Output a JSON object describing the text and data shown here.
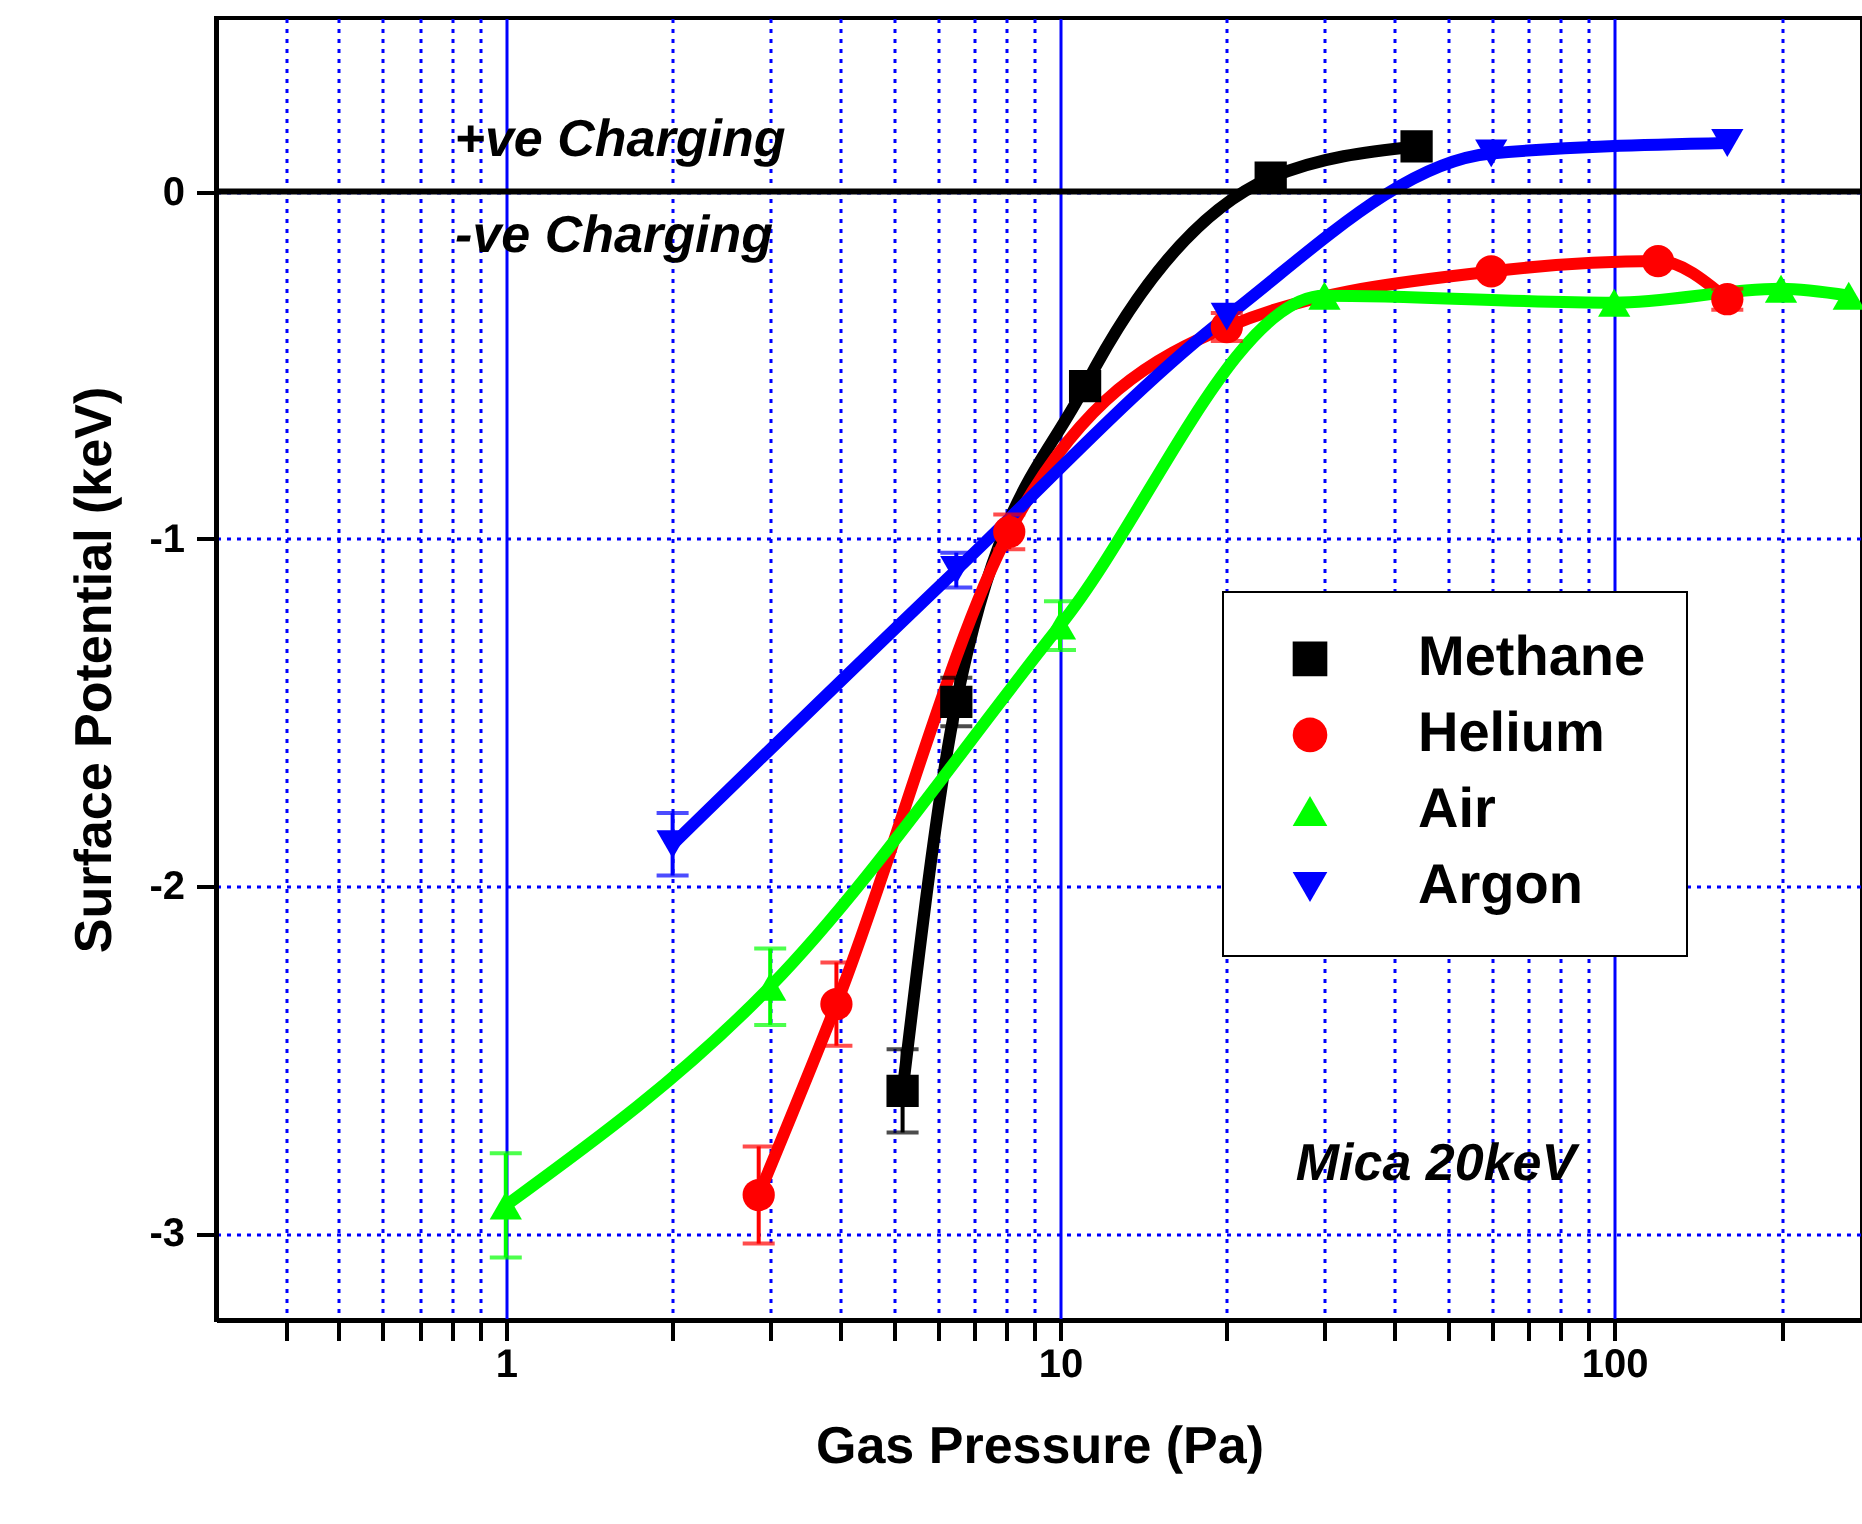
{
  "chart_data": {
    "type": "line",
    "xlabel": "Gas Pressure (Pa)",
    "ylabel": "Surface Potential (keV)",
    "log": "x",
    "grid": true,
    "legend": "right",
    "line_style": "solid",
    "xlim": [
      0.3,
      280
    ],
    "ylim": [
      -3.25,
      0.5
    ],
    "xticks": [
      {
        "value": 0.4,
        "label": null
      },
      {
        "value": 0.5,
        "label": null
      },
      {
        "value": 0.6,
        "label": null
      },
      {
        "value": 0.7,
        "label": null
      },
      {
        "value": 0.8,
        "label": null
      },
      {
        "value": 0.9,
        "label": null
      },
      1,
      {
        "value": 2,
        "label": null
      },
      {
        "value": 3,
        "label": null
      },
      {
        "value": 4,
        "label": null
      },
      {
        "value": 5,
        "label": null
      },
      {
        "value": 6,
        "label": null
      },
      {
        "value": 7,
        "label": null
      },
      {
        "value": 8,
        "label": null
      },
      {
        "value": 9,
        "label": null
      },
      10,
      {
        "value": 20,
        "label": null
      },
      {
        "value": 30,
        "label": null
      },
      {
        "value": 40,
        "label": null
      },
      {
        "value": 50,
        "label": null
      },
      {
        "value": 60,
        "label": null
      },
      {
        "value": 70,
        "label": null
      },
      {
        "value": 80,
        "label": null
      },
      {
        "value": 90,
        "label": null
      },
      100,
      {
        "value": 200,
        "label": null
      }
    ],
    "yticks": [
      -3,
      -2,
      -1,
      0
    ],
    "series": [
      {
        "name": "Methane",
        "color": "#000000",
        "marker": "square",
        "x": [
          5.2,
          6.5,
          11.1,
          24,
          44
        ],
        "values": [
          -2.59,
          -1.47,
          -0.56,
          0.04,
          0.13
        ],
        "errors": [
          0.12,
          0.07,
          null,
          null,
          null
        ]
      },
      {
        "name": "Helium",
        "color": "#ff0000",
        "marker": "circle",
        "x": [
          2.86,
          3.95,
          8.1,
          20,
          60,
          120,
          160
        ],
        "values": [
          -2.89,
          -2.34,
          -0.98,
          -0.39,
          -0.23,
          -0.2,
          -0.31
        ],
        "errors": [
          0.14,
          0.12,
          0.05,
          0.04,
          null,
          null,
          0.03
        ]
      },
      {
        "name": "Air",
        "color": "#00ff00",
        "marker": "triangle",
        "x": [
          1,
          3,
          10,
          30,
          100,
          200,
          265
        ],
        "values": [
          -2.92,
          -2.29,
          -1.25,
          -0.3,
          -0.32,
          -0.28,
          -0.3
        ],
        "errors": [
          0.15,
          0.11,
          0.07,
          null,
          null,
          null,
          null
        ]
      },
      {
        "name": "Argon",
        "color": "#0000ff",
        "marker": "triangle-down",
        "x": [
          2,
          6.5,
          20,
          60,
          160
        ],
        "values": [
          -1.88,
          -1.09,
          -0.36,
          0.11,
          0.14
        ],
        "errors": [
          0.09,
          0.05,
          null,
          null,
          null
        ]
      }
    ],
    "ref_lines": [
      {
        "axis": "y",
        "value": 0,
        "color": "#000000"
      }
    ],
    "annotations": [
      "+ve Charging",
      "-ve Charging",
      "Mica 20keV"
    ]
  }
}
